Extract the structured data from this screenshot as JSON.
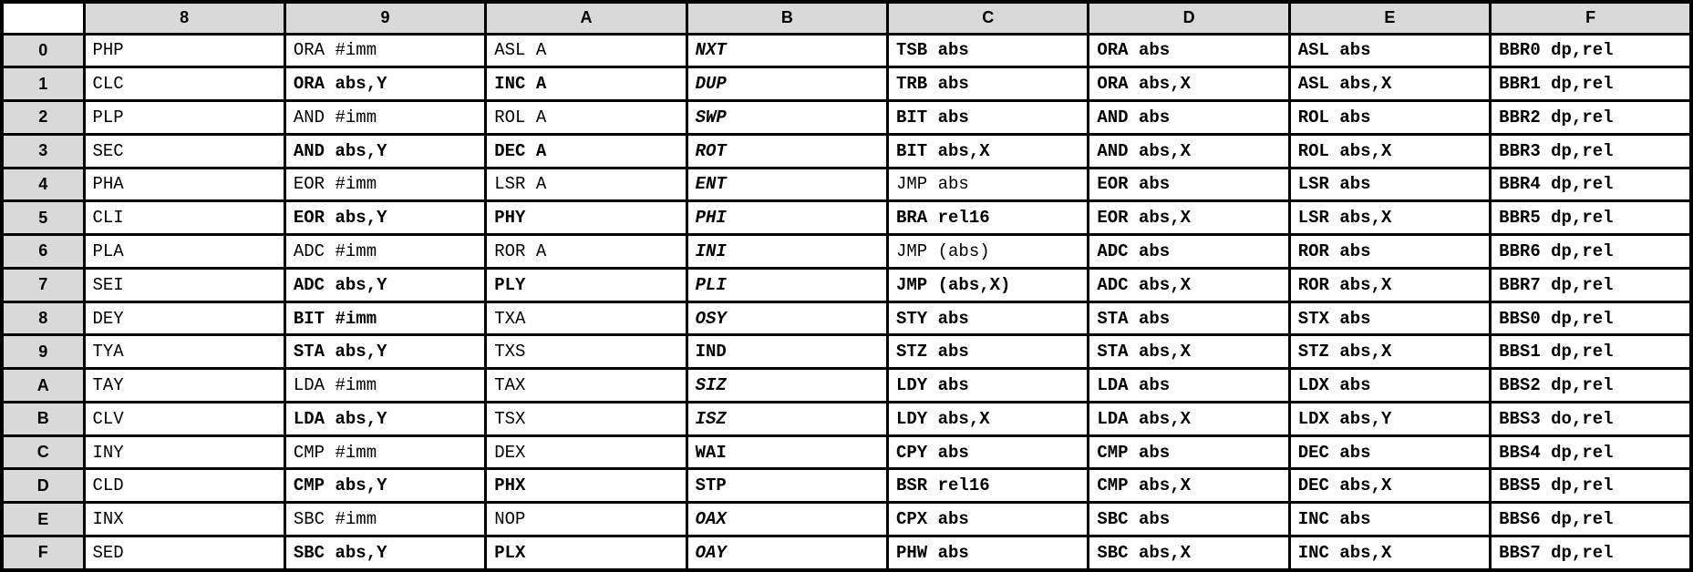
{
  "table": {
    "corner_label": "",
    "column_headers": [
      "8",
      "9",
      "A",
      "B",
      "C",
      "D",
      "E",
      "F"
    ],
    "style_legend": {
      "plain": "original opcode, white background, regular black mono",
      "bh": "bold black mono on gray hatched background",
      "r": "bold bright-red mono on white background",
      "rh": "bold bright-red mono on gray hatched background",
      "mi": "bold italic maroon mono on dark pink background",
      "m": "bold maroon mono on light pink background",
      "mph": "bold maroon mono on pink hatched background",
      "bs": "bold blue mono on light blue background",
      "bbh": "bold blue mono on blue hatched background"
    },
    "rows": [
      {
        "header": "0",
        "cells": [
          {
            "t": "PHP",
            "s": "plain"
          },
          {
            "t": "ORA #imm",
            "s": "plain"
          },
          {
            "t": "ASL A",
            "s": "plain"
          },
          {
            "t": "NXT",
            "s": "mi"
          },
          {
            "t": "TSB abs",
            "s": "rh"
          },
          {
            "t": "ORA abs",
            "s": "bh"
          },
          {
            "t": "ASL abs",
            "s": "bh"
          },
          {
            "t": "BBR0 dp,rel",
            "s": "bbh"
          }
        ]
      },
      {
        "header": "1",
        "cells": [
          {
            "t": "CLC",
            "s": "plain"
          },
          {
            "t": "ORA abs,Y",
            "s": "bh"
          },
          {
            "t": "INC A",
            "s": "r"
          },
          {
            "t": "DUP",
            "s": "mi"
          },
          {
            "t": "TRB abs",
            "s": "rh"
          },
          {
            "t": "ORA abs,X",
            "s": "bh"
          },
          {
            "t": "ASL abs,X",
            "s": "bh"
          },
          {
            "t": "BBR1 dp,rel",
            "s": "bbh"
          }
        ]
      },
      {
        "header": "2",
        "cells": [
          {
            "t": "PLP",
            "s": "plain"
          },
          {
            "t": "AND #imm",
            "s": "plain"
          },
          {
            "t": "ROL A",
            "s": "plain"
          },
          {
            "t": "SWP",
            "s": "mi"
          },
          {
            "t": "BIT abs",
            "s": "bh"
          },
          {
            "t": "AND abs",
            "s": "bh"
          },
          {
            "t": "ROL abs",
            "s": "bh"
          },
          {
            "t": "BBR2 dp,rel",
            "s": "bbh"
          }
        ]
      },
      {
        "header": "3",
        "cells": [
          {
            "t": "SEC",
            "s": "plain"
          },
          {
            "t": "AND abs,Y",
            "s": "bh"
          },
          {
            "t": "DEC A",
            "s": "r"
          },
          {
            "t": "ROT",
            "s": "mi"
          },
          {
            "t": "BIT abs,X",
            "s": "rh"
          },
          {
            "t": "AND abs,X",
            "s": "bh"
          },
          {
            "t": "ROL abs,X",
            "s": "bh"
          },
          {
            "t": "BBR3 dp,rel",
            "s": "bbh"
          }
        ]
      },
      {
        "header": "4",
        "cells": [
          {
            "t": "PHA",
            "s": "plain"
          },
          {
            "t": "EOR #imm",
            "s": "plain"
          },
          {
            "t": "LSR A",
            "s": "plain"
          },
          {
            "t": "ENT",
            "s": "mi"
          },
          {
            "t": "JMP abs",
            "s": "plain"
          },
          {
            "t": "EOR abs",
            "s": "bh"
          },
          {
            "t": "LSR abs",
            "s": "bh"
          },
          {
            "t": "BBR4 dp,rel",
            "s": "bbh"
          }
        ]
      },
      {
        "header": "5",
        "cells": [
          {
            "t": "CLI",
            "s": "plain"
          },
          {
            "t": "EOR abs,Y",
            "s": "bh"
          },
          {
            "t": "PHY",
            "s": "r"
          },
          {
            "t": "PHI",
            "s": "mi"
          },
          {
            "t": "BRA rel16",
            "s": "m"
          },
          {
            "t": "EOR abs,X",
            "s": "bh"
          },
          {
            "t": "LSR abs,X",
            "s": "bh"
          },
          {
            "t": "BBR5 dp,rel",
            "s": "bbh"
          }
        ]
      },
      {
        "header": "6",
        "cells": [
          {
            "t": "PLA",
            "s": "plain"
          },
          {
            "t": "ADC #imm",
            "s": "plain"
          },
          {
            "t": "ROR A",
            "s": "plain"
          },
          {
            "t": "INI",
            "s": "mi"
          },
          {
            "t": "JMP (abs)",
            "s": "plain"
          },
          {
            "t": "ADC abs",
            "s": "bh"
          },
          {
            "t": "ROR abs",
            "s": "bh"
          },
          {
            "t": "BBR6 dp,rel",
            "s": "bbh"
          }
        ]
      },
      {
        "header": "7",
        "cells": [
          {
            "t": "SEI",
            "s": "plain"
          },
          {
            "t": "ADC abs,Y",
            "s": "bh"
          },
          {
            "t": "PLY",
            "s": "r"
          },
          {
            "t": "PLI",
            "s": "mi"
          },
          {
            "t": "JMP (abs,X)",
            "s": "r"
          },
          {
            "t": "ADC abs,X",
            "s": "bh"
          },
          {
            "t": "ROR abs,X",
            "s": "bh"
          },
          {
            "t": "BBR7 dp,rel",
            "s": "bbh"
          }
        ]
      },
      {
        "header": "8",
        "cells": [
          {
            "t": "DEY",
            "s": "plain"
          },
          {
            "t": "BIT #imm",
            "s": "r"
          },
          {
            "t": "TXA",
            "s": "plain"
          },
          {
            "t": "OSY",
            "s": "mi"
          },
          {
            "t": "STY abs",
            "s": "bh"
          },
          {
            "t": "STA abs",
            "s": "bh"
          },
          {
            "t": "STX abs",
            "s": "bh"
          },
          {
            "t": "BBS0 dp,rel",
            "s": "bbh"
          }
        ]
      },
      {
        "header": "9",
        "cells": [
          {
            "t": "TYA",
            "s": "plain"
          },
          {
            "t": "STA abs,Y",
            "s": "bh"
          },
          {
            "t": "TXS",
            "s": "plain"
          },
          {
            "t": "IND",
            "s": "m"
          },
          {
            "t": "STZ abs",
            "s": "rh"
          },
          {
            "t": "STA abs,X",
            "s": "bh"
          },
          {
            "t": "STZ abs,X",
            "s": "rh"
          },
          {
            "t": "BBS1 dp,rel",
            "s": "bbh"
          }
        ]
      },
      {
        "header": "A",
        "cells": [
          {
            "t": "TAY",
            "s": "plain"
          },
          {
            "t": "LDA #imm",
            "s": "plain"
          },
          {
            "t": "TAX",
            "s": "plain"
          },
          {
            "t": "SIZ",
            "s": "mi"
          },
          {
            "t": "LDY abs",
            "s": "bh"
          },
          {
            "t": "LDA abs",
            "s": "bh"
          },
          {
            "t": "LDX abs",
            "s": "bh"
          },
          {
            "t": "BBS2 dp,rel",
            "s": "bbh"
          }
        ]
      },
      {
        "header": "B",
        "cells": [
          {
            "t": "CLV",
            "s": "plain"
          },
          {
            "t": "LDA abs,Y",
            "s": "bh"
          },
          {
            "t": "TSX",
            "s": "plain"
          },
          {
            "t": "ISZ",
            "s": "mi"
          },
          {
            "t": "LDY abs,X",
            "s": "bh"
          },
          {
            "t": "LDA abs,X",
            "s": "bh"
          },
          {
            "t": "LDX abs,Y",
            "s": "bh"
          },
          {
            "t": "BBS3 do,rel",
            "s": "bbh"
          }
        ]
      },
      {
        "header": "C",
        "cells": [
          {
            "t": "INY",
            "s": "plain"
          },
          {
            "t": "CMP #imm",
            "s": "plain"
          },
          {
            "t": "DEX",
            "s": "plain"
          },
          {
            "t": "WAI",
            "s": "bs"
          },
          {
            "t": "CPY abs",
            "s": "bh"
          },
          {
            "t": "CMP abs",
            "s": "bh"
          },
          {
            "t": "DEC abs",
            "s": "bh"
          },
          {
            "t": "BBS4 dp,rel",
            "s": "bbh"
          }
        ]
      },
      {
        "header": "D",
        "cells": [
          {
            "t": "CLD",
            "s": "plain"
          },
          {
            "t": "CMP abs,Y",
            "s": "bh"
          },
          {
            "t": "PHX",
            "s": "r"
          },
          {
            "t": "STP",
            "s": "bs"
          },
          {
            "t": "BSR rel16",
            "s": "m"
          },
          {
            "t": "CMP abs,X",
            "s": "bh"
          },
          {
            "t": "DEC abs,X",
            "s": "bh"
          },
          {
            "t": "BBS5 dp,rel",
            "s": "bbh"
          }
        ]
      },
      {
        "header": "E",
        "cells": [
          {
            "t": "INX",
            "s": "plain"
          },
          {
            "t": "SBC #imm",
            "s": "plain"
          },
          {
            "t": "NOP",
            "s": "plain"
          },
          {
            "t": "OAX",
            "s": "mi"
          },
          {
            "t": "CPX abs",
            "s": "bh"
          },
          {
            "t": "SBC abs",
            "s": "bh"
          },
          {
            "t": "INC abs",
            "s": "bh"
          },
          {
            "t": "BBS6 dp,rel",
            "s": "bbh"
          }
        ]
      },
      {
        "header": "F",
        "cells": [
          {
            "t": "SED",
            "s": "plain"
          },
          {
            "t": "SBC abs,Y",
            "s": "bh"
          },
          {
            "t": "PLX",
            "s": "r"
          },
          {
            "t": "OAY",
            "s": "mi"
          },
          {
            "t": "PHW abs",
            "s": "mph"
          },
          {
            "t": "SBC abs,X",
            "s": "bh"
          },
          {
            "t": "INC abs,X",
            "s": "bh"
          },
          {
            "t": "BBS7 dp,rel",
            "s": "bbh"
          }
        ]
      }
    ]
  },
  "colors": {
    "border": "#000000",
    "headerBg": "#d9d9d9",
    "red": "#e80000",
    "maroon": "#943434",
    "darkPink": "#c88b8b",
    "lightPink": "#efd9d9",
    "blue": "#1d6fb8",
    "lightBlue": "#d9e6f2",
    "grayHatch": "#e7e7e7",
    "blueHatch": "#ccd7e5",
    "pinkHatch": "#e9caca"
  }
}
